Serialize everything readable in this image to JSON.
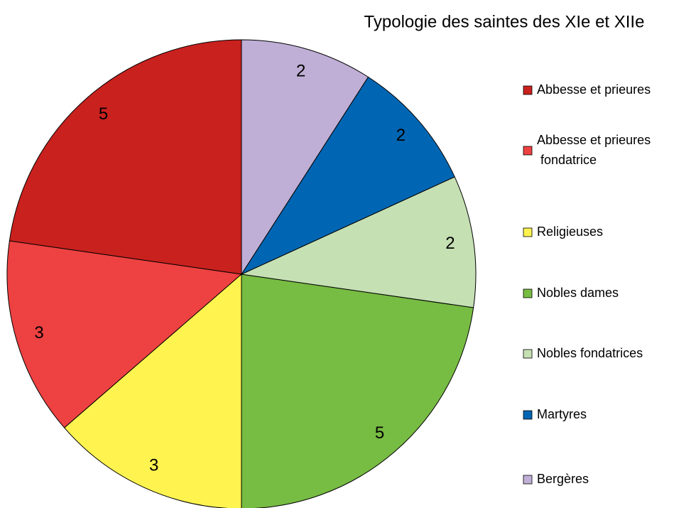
{
  "chart_data": {
    "type": "pie",
    "title": "Typologie des saintes des XIe et XIIe",
    "categories": [
      "Abbesse et prieures",
      "Abbesse et prieures fondatrice",
      "Religieuses",
      "Nobles dames",
      "Nobles fondatrices",
      "Martyres",
      "Bergères"
    ],
    "values": [
      5,
      3,
      3,
      5,
      2,
      2,
      2
    ],
    "colors": [
      "#c9211e",
      "#ee4141",
      "#fff350",
      "#77bc43",
      "#c5e0b3",
      "#0066b3",
      "#bfafd6"
    ],
    "legend": "right"
  }
}
